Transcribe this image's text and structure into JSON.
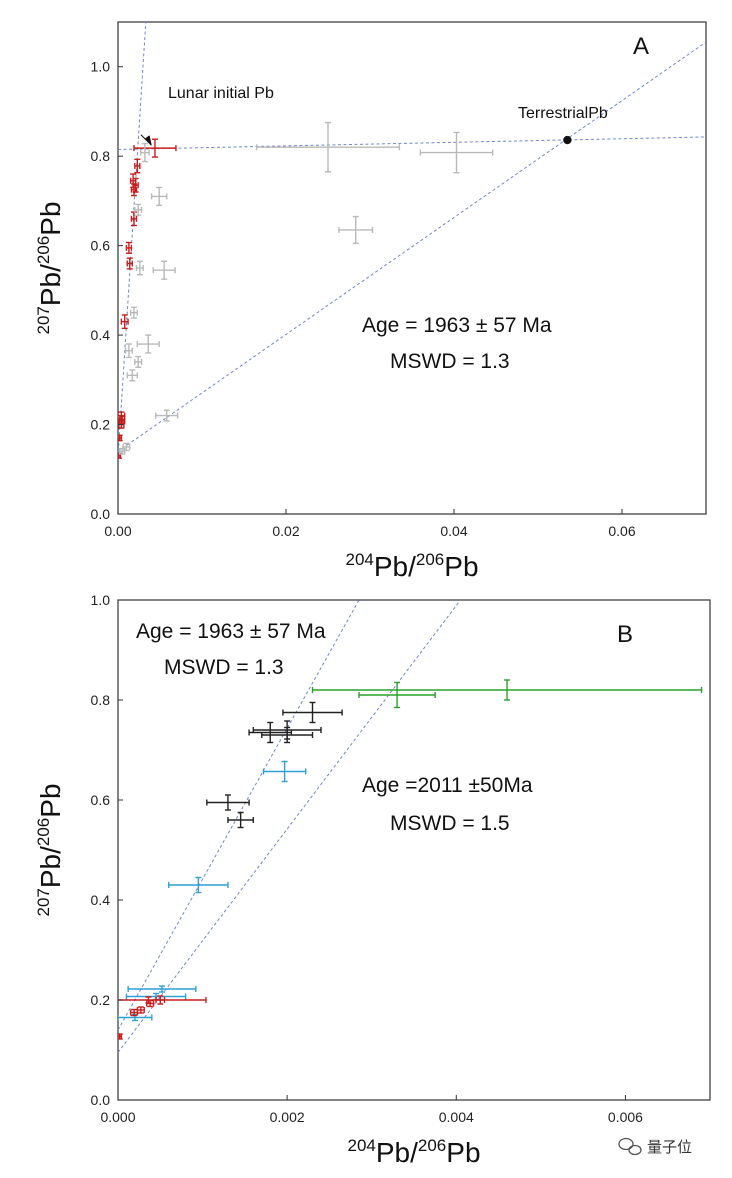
{
  "chart_data": [
    {
      "type": "scatter",
      "panel": "A",
      "xlabel": {
        "sup1": "204",
        "base1": "Pb/",
        "sup2": "206",
        "base2": "Pb"
      },
      "ylabel": {
        "sup1": "207",
        "base1": "Pb/",
        "sup2": "206",
        "base2": "Pb"
      },
      "xlim": [
        0,
        0.07
      ],
      "ylim": [
        0,
        1.1
      ],
      "xticks": [
        0,
        0.02,
        0.04,
        0.06
      ],
      "xtick_labels": [
        "0.00",
        "0.02",
        "0.04",
        "0.06"
      ],
      "yticks": [
        0,
        0.2,
        0.4,
        0.6,
        0.8,
        1.0
      ],
      "ytick_labels": [
        "0.0",
        "0.2",
        "0.4",
        "0.6",
        "0.8",
        "1.0"
      ],
      "grid": false,
      "annotations": {
        "lunar": "Lunar initial Pb",
        "terrestrial": "TerrestrialPb",
        "age": "Age = 1963 ± 57 Ma",
        "mswd": "MSWD = 1.3"
      },
      "lines": [
        {
          "x1": 0,
          "y1": 0.815,
          "x2": 0.07,
          "y2": 0.843
        },
        {
          "x1": 0,
          "y1": 0.14,
          "x2": 0.07,
          "y2": 1.055
        },
        {
          "x1": 0,
          "y1": 0.127,
          "x2": 0.00338,
          "y2": 1.12
        }
      ],
      "terrestrial_point": {
        "x": 0.0535,
        "y": 0.836
      },
      "arrow_target": {
        "x": 0.00395,
        "y": 0.825
      },
      "series": [
        {
          "color": "#c81d1d",
          "points": [
            {
              "x": 0.0044,
              "y": 0.818,
              "xe": 0.0025,
              "ye": 0.02
            },
            {
              "x": 0.0023,
              "y": 0.778,
              "xe": 0.0003,
              "ye": 0.015
            },
            {
              "x": 0.0018,
              "y": 0.745,
              "xe": 0.0003,
              "ye": 0.015
            },
            {
              "x": 0.0021,
              "y": 0.735,
              "xe": 0.0003,
              "ye": 0.015
            },
            {
              "x": 0.0019,
              "y": 0.725,
              "xe": 0.0003,
              "ye": 0.013
            },
            {
              "x": 0.0019,
              "y": 0.66,
              "xe": 0.0003,
              "ye": 0.015
            },
            {
              "x": 0.0013,
              "y": 0.595,
              "xe": 0.0003,
              "ye": 0.012
            },
            {
              "x": 0.0014,
              "y": 0.56,
              "xe": 0.0003,
              "ye": 0.012
            },
            {
              "x": 0.0008,
              "y": 0.43,
              "xe": 0.0004,
              "ye": 0.015
            },
            {
              "x": 0.0004,
              "y": 0.22,
              "xe": 0.0004,
              "ye": 0.008
            },
            {
              "x": 0.0005,
              "y": 0.21,
              "xe": 0.0003,
              "ye": 0.008
            },
            {
              "x": 0.0004,
              "y": 0.2,
              "xe": 0.0003,
              "ye": 0.008
            },
            {
              "x": 0.0002,
              "y": 0.17,
              "xe": 0.0002,
              "ye": 0.006
            },
            {
              "x": 0.0001,
              "y": 0.13,
              "xe": 0.0002,
              "ye": 0.005
            }
          ]
        },
        {
          "color": "#b9b9b9",
          "points": [
            {
              "x": 0.025,
              "y": 0.82,
              "xe": 0.0085,
              "ye": 0.055
            },
            {
              "x": 0.0403,
              "y": 0.808,
              "xe": 0.0043,
              "ye": 0.045
            },
            {
              "x": 0.0283,
              "y": 0.635,
              "xe": 0.002,
              "ye": 0.03
            },
            {
              "x": 0.0049,
              "y": 0.71,
              "xe": 0.0009,
              "ye": 0.02
            },
            {
              "x": 0.0032,
              "y": 0.808,
              "xe": 0.0005,
              "ye": 0.02
            },
            {
              "x": 0.0055,
              "y": 0.545,
              "xe": 0.0013,
              "ye": 0.02
            },
            {
              "x": 0.0024,
              "y": 0.68,
              "xe": 0.0004,
              "ye": 0.012
            },
            {
              "x": 0.0026,
              "y": 0.55,
              "xe": 0.0004,
              "ye": 0.015
            },
            {
              "x": 0.0019,
              "y": 0.45,
              "xe": 0.0004,
              "ye": 0.012
            },
            {
              "x": 0.0036,
              "y": 0.38,
              "xe": 0.0013,
              "ye": 0.02
            },
            {
              "x": 0.0013,
              "y": 0.365,
              "xe": 0.0004,
              "ye": 0.015
            },
            {
              "x": 0.0024,
              "y": 0.34,
              "xe": 0.0004,
              "ye": 0.012
            },
            {
              "x": 0.0017,
              "y": 0.31,
              "xe": 0.0006,
              "ye": 0.012
            },
            {
              "x": 0.0058,
              "y": 0.22,
              "xe": 0.0013,
              "ye": 0.012
            },
            {
              "x": 0.001,
              "y": 0.15,
              "xe": 0.0004,
              "ye": 0.008
            },
            {
              "x": 0.0005,
              "y": 0.14,
              "xe": 0.0003,
              "ye": 0.006
            }
          ]
        }
      ]
    },
    {
      "type": "scatter",
      "panel": "B",
      "xlabel": {
        "sup1": "204",
        "base1": "Pb/",
        "sup2": "206",
        "base2": "Pb"
      },
      "ylabel": {
        "sup1": "207",
        "base1": "Pb/",
        "sup2": "206",
        "base2": "Pb"
      },
      "xlim": [
        0,
        0.007
      ],
      "ylim": [
        0,
        1.0
      ],
      "xticks": [
        0,
        0.002,
        0.004,
        0.006
      ],
      "xtick_labels": [
        "0.000",
        "0.002",
        "0.004",
        "0.006"
      ],
      "yticks": [
        0,
        0.2,
        0.4,
        0.6,
        0.8,
        1.0
      ],
      "ytick_labels": [
        "0.0",
        "0.2",
        "0.4",
        "0.6",
        "0.8",
        "1.0"
      ],
      "grid": false,
      "annotations": {
        "age1": "Age = 1963 ± 57 Ma",
        "mswd1": "MSWD = 1.3",
        "age2": "Age =2011  ±50Ma",
        "mswd2": "MSWD = 1.5"
      },
      "lines": [
        {
          "x1": 0,
          "y1": 0.14,
          "x2": 0.00285,
          "y2": 1.0
        },
        {
          "x1": 0,
          "y1": 0.095,
          "x2": 0.00405,
          "y2": 1.0
        }
      ],
      "series": [
        {
          "color": "#2aa22a",
          "points": [
            {
              "x": 0.0046,
              "y": 0.82,
              "xe": 0.0023,
              "ye": 0.02
            },
            {
              "x": 0.0033,
              "y": 0.81,
              "xe": 0.00045,
              "ye": 0.025
            }
          ]
        },
        {
          "color": "#222222",
          "points": [
            {
              "x": 0.0023,
              "y": 0.775,
              "xe": 0.00035,
              "ye": 0.02
            },
            {
              "x": 0.0018,
              "y": 0.735,
              "xe": 0.00025,
              "ye": 0.02
            },
            {
              "x": 0.002,
              "y": 0.74,
              "xe": 0.0004,
              "ye": 0.018
            },
            {
              "x": 0.002,
              "y": 0.73,
              "xe": 0.0003,
              "ye": 0.015
            },
            {
              "x": 0.0013,
              "y": 0.595,
              "xe": 0.00025,
              "ye": 0.015
            },
            {
              "x": 0.00145,
              "y": 0.56,
              "xe": 0.00015,
              "ye": 0.015
            }
          ]
        },
        {
          "color": "#2f9fd6",
          "points": [
            {
              "x": 0.00197,
              "y": 0.657,
              "xe": 0.00025,
              "ye": 0.02
            },
            {
              "x": 0.00095,
              "y": 0.43,
              "xe": 0.00035,
              "ye": 0.015
            },
            {
              "x": 0.00052,
              "y": 0.222,
              "xe": 0.0004,
              "ye": 0.006
            },
            {
              "x": 0.00045,
              "y": 0.207,
              "xe": 0.00035,
              "ye": 0.006
            },
            {
              "x": 0.0002,
              "y": 0.165,
              "xe": 0.0002,
              "ye": 0.006
            }
          ]
        },
        {
          "color": "#c81d1d",
          "points": [
            {
              "x": 0.00036,
              "y": 0.2,
              "xe": 0.00068,
              "ye": 0.006
            },
            {
              "x": 0.0005,
              "y": 0.2,
              "xe": 5e-05,
              "ye": 0.008
            },
            {
              "x": 0.00038,
              "y": 0.193,
              "xe": 4e-05,
              "ye": 0.006
            },
            {
              "x": 0.00027,
              "y": 0.18,
              "xe": 4e-05,
              "ye": 0.006
            },
            {
              "x": 0.00019,
              "y": 0.175,
              "xe": 4e-05,
              "ye": 0.006
            },
            {
              "x": 2e-05,
              "y": 0.127,
              "xe": 2e-05,
              "ye": 0.005
            }
          ]
        }
      ]
    }
  ],
  "watermark": {
    "icon": "wechat-bubbles-icon",
    "text": "量子位"
  }
}
